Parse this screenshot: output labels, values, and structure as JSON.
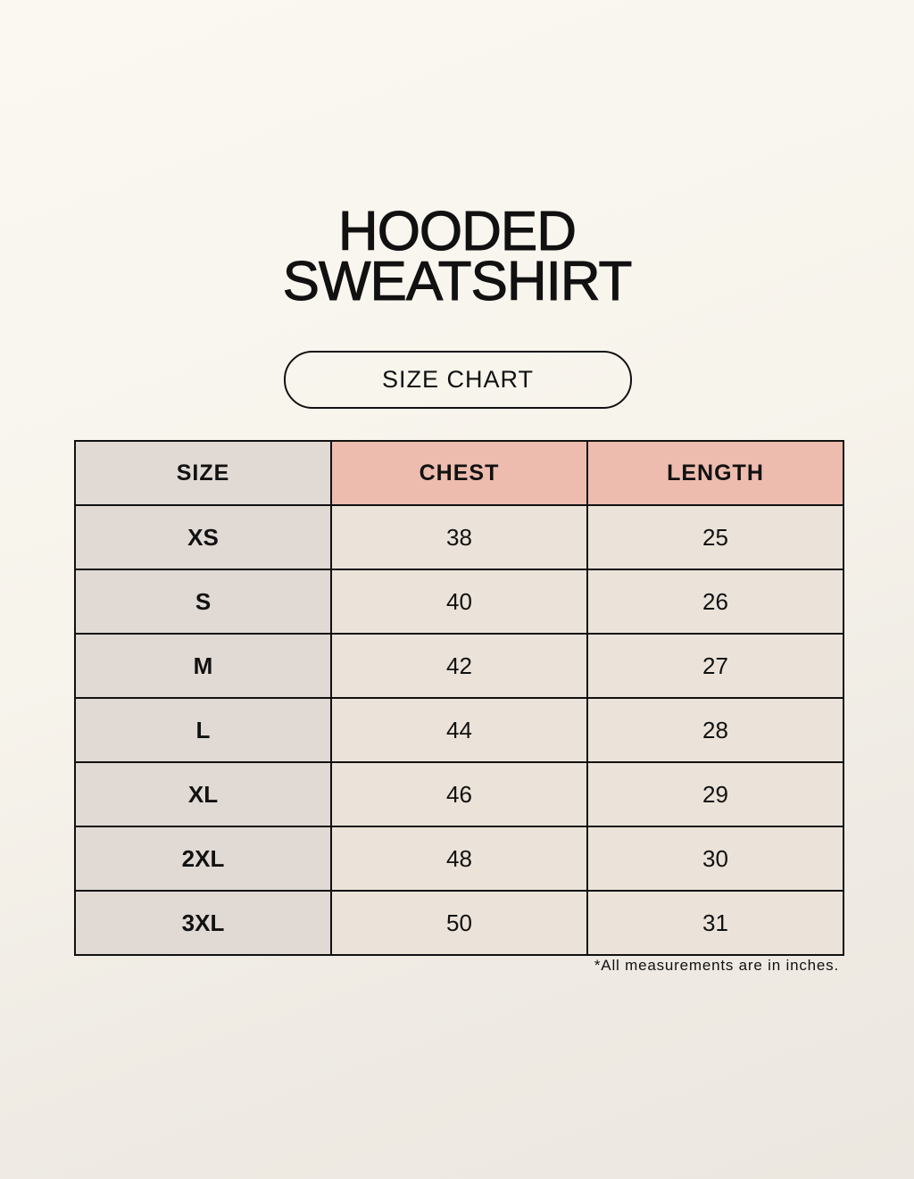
{
  "title": {
    "line1": "HOODED",
    "line2": "SWEATSHIRT"
  },
  "subtitle": "SIZE CHART",
  "table": {
    "headers": [
      "SIZE",
      "CHEST",
      "LENGTH"
    ],
    "rows": [
      [
        "XS",
        "38",
        "25"
      ],
      [
        "S",
        "40",
        "26"
      ],
      [
        "M",
        "42",
        "27"
      ],
      [
        "L",
        "44",
        "28"
      ],
      [
        "XL",
        "46",
        "29"
      ],
      [
        "2XL",
        "48",
        "30"
      ],
      [
        "3XL",
        "50",
        "31"
      ]
    ]
  },
  "footnote": "*All measurements are in inches.",
  "colors": {
    "size_column": "#e0d9d4",
    "header_accent": "#edbcae",
    "value_cells": "#ebe3d9",
    "border": "#111111"
  }
}
